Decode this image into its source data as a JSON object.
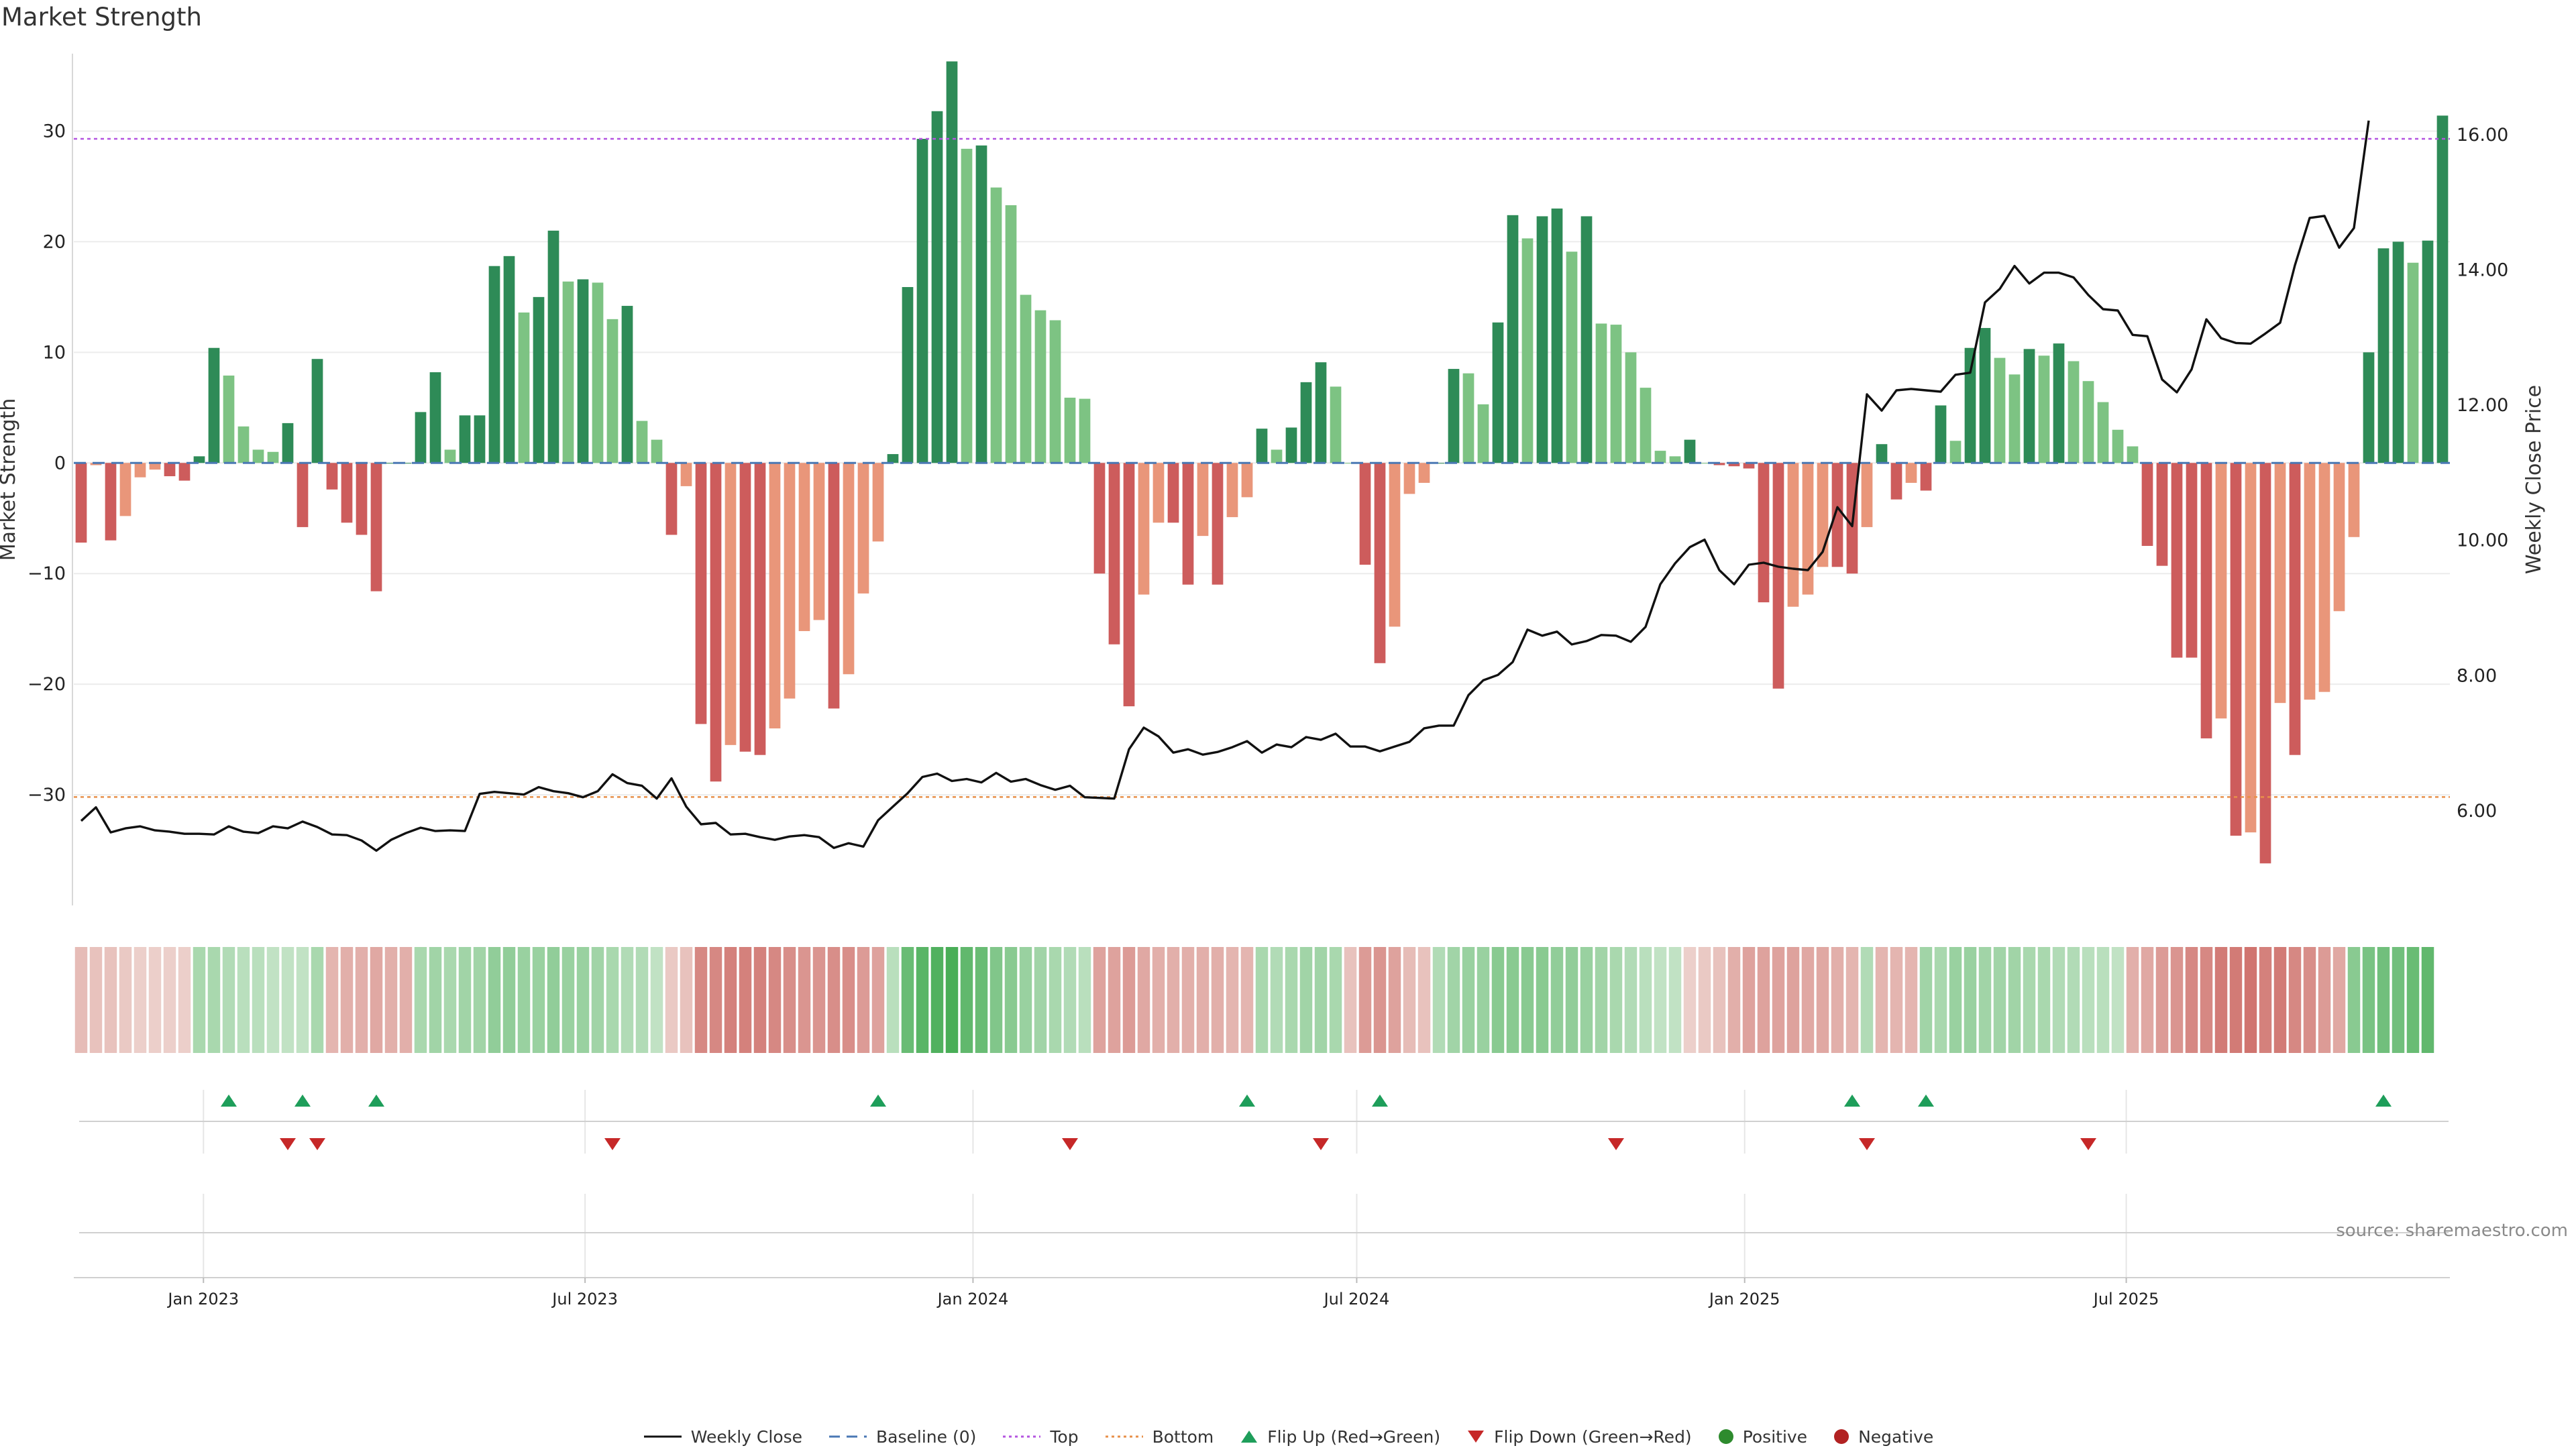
{
  "title": "Market Strength",
  "source": "source: sharemaestro.com",
  "colors": {
    "pos_strong": "#2e8b57",
    "pos_light": "#7dc383",
    "neg_strong": "#cd5c5c",
    "neg_light": "#e9967a",
    "price_line": "#111111",
    "baseline": "#4a78b4",
    "top_line": "#b455e0",
    "bottom_line": "#e8904a",
    "flip_up": "#1e9e5a",
    "flip_down": "#c62828",
    "positive_dot": "#2e8b2e",
    "negative_dot": "#b22222"
  },
  "chart_data": {
    "type": "bar",
    "title": "Market Strength",
    "xlabel": "",
    "ylabel": "Market Strength",
    "y2label": "Weekly Close Price",
    "ylim": [
      -40,
      37
    ],
    "y2lim": [
      4.6,
      17.2
    ],
    "yticks": [
      -30,
      -20,
      -10,
      0,
      10,
      20,
      30
    ],
    "y2ticks": [
      6,
      8,
      10,
      12,
      14,
      16
    ],
    "y2ticklabels": [
      "6.00",
      "8.00",
      "10.00",
      "12.00",
      "14.00",
      "16.00"
    ],
    "xticks": [
      {
        "date": "2023-01-01",
        "label": "Jan 2023"
      },
      {
        "date": "2023-07-01",
        "label": "Jul 2023"
      },
      {
        "date": "2024-01-01",
        "label": "Jan 2024"
      },
      {
        "date": "2024-07-01",
        "label": "Jul 2024"
      },
      {
        "date": "2025-01-01",
        "label": "Jan 2025"
      },
      {
        "date": "2025-07-01",
        "label": "Jul 2025"
      }
    ],
    "start_date": "2022-11-04",
    "interval_days": 7,
    "top_threshold": 29.3,
    "bottom_threshold": -30.2,
    "baseline": 0,
    "strength": [
      -7.2,
      -0.2,
      -7,
      -4.8,
      -1.3,
      -0.6,
      -1.2,
      -1.6,
      0.6,
      10.4,
      7.9,
      3.3,
      1.2,
      1,
      3.6,
      -5.8,
      9.4,
      -2.4,
      -5.4,
      -6.5,
      -11.6,
      0,
      0,
      4.6,
      8.2,
      1.2,
      4.3,
      4.3,
      17.8,
      18.7,
      13.6,
      15,
      21,
      16.4,
      16.6,
      16.3,
      13,
      14.2,
      3.8,
      2.1,
      -6.5,
      -2.1,
      -23.6,
      -28.8,
      -25.5,
      -26.1,
      -26.4,
      -24,
      -21.3,
      -15.2,
      -14.2,
      -22.2,
      -19.1,
      -11.8,
      -7.1,
      0.8,
      15.9,
      29.3,
      31.8,
      36.3,
      28.4,
      28.7,
      24.9,
      23.3,
      15.2,
      13.8,
      12.9,
      5.9,
      5.8,
      -10,
      -16.4,
      -22,
      -11.9,
      -5.4,
      -5.4,
      -11,
      -6.6,
      -11,
      -4.9,
      -3.1,
      3.1,
      1.2,
      3.2,
      7.3,
      9.1,
      6.9,
      0,
      -9.2,
      -18.1,
      -14.8,
      -2.8,
      -1.8,
      0,
      8.5,
      8.1,
      5.3,
      12.7,
      22.4,
      20.3,
      22.3,
      23,
      19.1,
      22.3,
      12.6,
      12.5,
      10,
      6.8,
      1.1,
      0.6,
      2.1,
      0,
      -0.2,
      -0.3,
      -0.5,
      -12.6,
      -20.4,
      -13,
      -11.9,
      -9.4,
      -9.4,
      -10,
      -5.8,
      1.7,
      -3.3,
      -1.8,
      -2.5,
      5.2,
      2,
      10.4,
      12.2,
      9.5,
      8,
      10.3,
      9.7,
      10.8,
      9.2,
      7.4,
      5.5,
      3,
      1.5,
      -7.5,
      -9.3,
      -17.6,
      -17.6,
      -24.9,
      -23.1,
      -33.7,
      -33.4,
      -36.2,
      -21.7,
      -26.4,
      -21.4,
      -20.7,
      -13.4,
      -6.7,
      10,
      19.4,
      20,
      18.1,
      20.1,
      31.4
    ],
    "price": [
      5.85,
      6.05,
      5.68,
      5.74,
      5.77,
      5.71,
      5.69,
      5.66,
      5.66,
      5.65,
      5.77,
      5.69,
      5.67,
      5.77,
      5.74,
      5.84,
      5.76,
      5.65,
      5.64,
      5.56,
      5.41,
      5.57,
      5.67,
      5.75,
      5.7,
      5.71,
      5.7,
      6.25,
      6.28,
      6.26,
      6.24,
      6.35,
      6.29,
      6.26,
      6.2,
      6.29,
      6.54,
      6.41,
      6.37,
      6.18,
      6.48,
      6.06,
      5.8,
      5.82,
      5.65,
      5.66,
      5.61,
      5.57,
      5.62,
      5.64,
      5.61,
      5.45,
      5.52,
      5.47,
      5.86,
      6.06,
      6.26,
      6.5,
      6.55,
      6.44,
      6.47,
      6.42,
      6.56,
      6.43,
      6.47,
      6.38,
      6.31,
      6.37,
      6.2,
      6.19,
      6.18,
      6.91,
      7.23,
      7.1,
      6.86,
      6.91,
      6.83,
      6.87,
      6.94,
      7.03,
      6.86,
      6.98,
      6.94,
      7.09,
      7.05,
      7.14,
      6.95,
      6.95,
      6.88,
      6.95,
      7.02,
      7.22,
      7.26,
      7.26,
      7.71,
      7.93,
      8.01,
      8.2,
      8.68,
      8.59,
      8.65,
      8.46,
      8.51,
      8.6,
      8.59,
      8.5,
      8.72,
      9.35,
      9.66,
      9.9,
      10.01,
      9.56,
      9.35,
      9.64,
      9.67,
      9.61,
      9.58,
      9.56,
      9.83,
      10.49,
      10.21,
      12.16,
      11.92,
      12.22,
      12.24,
      12.22,
      12.2,
      12.45,
      12.48,
      13.52,
      13.72,
      14.06,
      13.8,
      13.96,
      13.96,
      13.89,
      13.63,
      13.42,
      13.4,
      13.04,
      13.02,
      12.38,
      12.19,
      12.53,
      13.27,
      12.99,
      12.92,
      12.91,
      13.06,
      13.22,
      14.07,
      14.77,
      14.8,
      14.33,
      14.62,
      16.21
    ],
    "heat_strip": [
      -0.25,
      -0.2,
      -0.2,
      -0.15,
      -0.1,
      -0.1,
      -0.1,
      -0.1,
      0.35,
      0.35,
      0.3,
      0.25,
      0.25,
      0.2,
      0.2,
      0.2,
      0.35,
      -0.3,
      -0.35,
      -0.35,
      -0.4,
      -0.35,
      -0.35,
      0.35,
      0.4,
      0.35,
      0.4,
      0.4,
      0.5,
      0.5,
      0.45,
      0.45,
      0.5,
      0.45,
      0.45,
      0.4,
      0.35,
      0.3,
      0.3,
      0.2,
      -0.15,
      -0.2,
      -0.65,
      -0.65,
      -0.7,
      -0.7,
      -0.7,
      -0.65,
      -0.6,
      -0.55,
      -0.55,
      -0.6,
      -0.6,
      -0.5,
      -0.45,
      0.25,
      0.75,
      0.85,
      0.9,
      0.95,
      0.8,
      0.75,
      0.6,
      0.55,
      0.45,
      0.4,
      0.35,
      0.3,
      0.25,
      -0.45,
      -0.45,
      -0.5,
      -0.4,
      -0.35,
      -0.35,
      -0.35,
      -0.35,
      -0.35,
      -0.3,
      -0.3,
      0.35,
      0.3,
      0.35,
      0.4,
      0.4,
      0.35,
      -0.2,
      -0.5,
      -0.55,
      -0.45,
      -0.25,
      -0.2,
      0.3,
      0.4,
      0.45,
      0.45,
      0.55,
      0.55,
      0.55,
      0.55,
      0.5,
      0.5,
      0.45,
      0.4,
      0.35,
      0.3,
      0.25,
      0.2,
      0.2,
      -0.1,
      -0.15,
      -0.2,
      -0.35,
      -0.45,
      -0.45,
      -0.45,
      -0.45,
      -0.4,
      -0.4,
      -0.35,
      -0.3,
      0.3,
      -0.3,
      -0.3,
      -0.3,
      0.4,
      0.35,
      0.45,
      0.45,
      0.4,
      0.4,
      0.4,
      0.35,
      0.35,
      0.3,
      0.3,
      0.25,
      0.25,
      0.2,
      -0.35,
      -0.4,
      -0.5,
      -0.55,
      -0.65,
      -0.65,
      -0.75,
      -0.75,
      -0.8,
      -0.7,
      -0.75,
      -0.65,
      -0.6,
      -0.5,
      -0.4,
      0.55,
      0.65,
      0.7,
      0.7,
      0.75,
      0.8
    ],
    "flip_up_dates": [
      "2023-01-13",
      "2023-02-17",
      "2023-03-24",
      "2023-11-17",
      "2024-05-10",
      "2024-07-12",
      "2025-02-21",
      "2025-03-28",
      "2025-10-31"
    ],
    "flip_down_dates": [
      "2023-02-10",
      "2023-02-24",
      "2023-07-14",
      "2024-02-16",
      "2024-06-14",
      "2024-11-01",
      "2025-02-28",
      "2025-06-13"
    ],
    "legend": [
      "Weekly Close",
      "Baseline (0)",
      "Top",
      "Bottom",
      "Flip Up (Red→Green)",
      "Flip Down (Green→Red)",
      "Positive",
      "Negative"
    ]
  }
}
